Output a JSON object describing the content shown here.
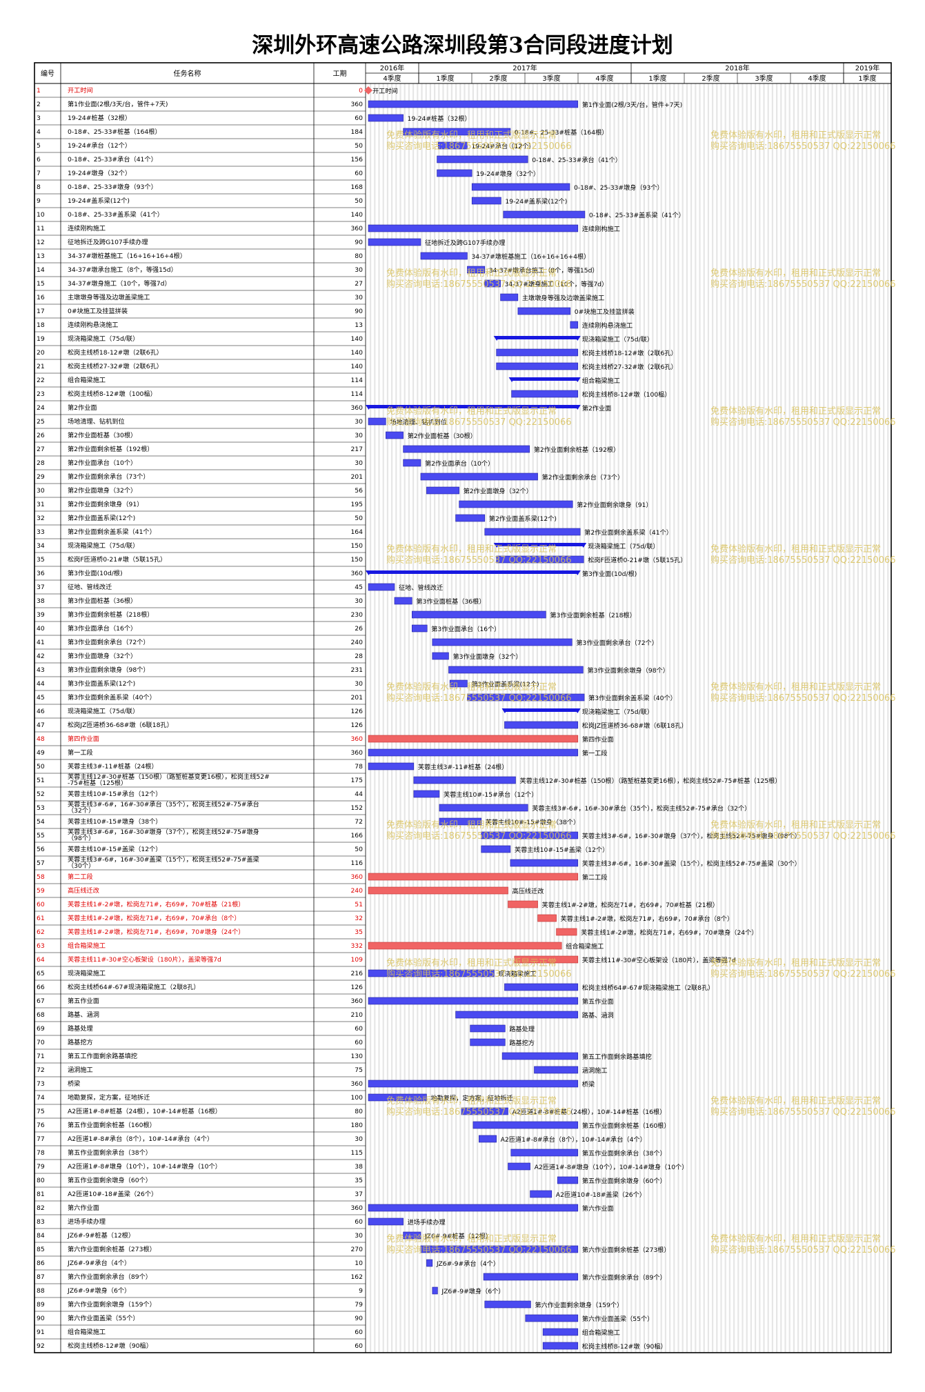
{
  "title": "深圳外环高速公路深圳段第3合同段进度计划",
  "header": {
    "col_id": "编号",
    "col_name": "任务名称",
    "col_dur": "工期",
    "years": [
      {
        "label": "2016年",
        "start": 0,
        "end": 1
      },
      {
        "label": "2017年",
        "start": 1,
        "end": 5
      },
      {
        "label": "2018年",
        "start": 5,
        "end": 9
      },
      {
        "label": "2019年",
        "start": 9,
        "end": 10
      }
    ],
    "quarters": [
      "4季度",
      "1季度",
      "2季度",
      "3季度",
      "4季度",
      "1季度",
      "2季度",
      "3季度",
      "4季度",
      "1季度"
    ]
  },
  "watermark": [
    "免费体验版有水印，租用和正式版显示正常",
    "购买咨询电话:18675550537 QQ:22150066"
  ],
  "colors": {
    "normal": "#4a4af0",
    "critical": "#f06464",
    "summary": "#1818e0",
    "text_red": "#e00000"
  },
  "chart_data": {
    "type": "gantt",
    "unit": "days",
    "tasks": [
      {
        "id": "1",
        "name": "开工时间",
        "dur": "0",
        "s": 0,
        "e": 0,
        "red": true,
        "milestone": true,
        "label": "开工时间"
      },
      {
        "id": "2",
        "name": "第1作业面(2根/3天/台，管件+7天)",
        "dur": "360",
        "s": 0,
        "e": 360,
        "label": "第1作业面(2根/3天/台，管件+7天)"
      },
      {
        "id": "3",
        "name": "19-24#桩基（32根）",
        "dur": "60",
        "s": 0,
        "e": 60,
        "label": "19-24#桩基（32根）"
      },
      {
        "id": "4",
        "name": "0-18#、25-33#桩基（164根）",
        "dur": "184",
        "s": 60,
        "e": 244,
        "label": "0-18#、25-33#桩基（164根）"
      },
      {
        "id": "5",
        "name": "19-24#承台（12个）",
        "dur": "50",
        "s": 120,
        "e": 170,
        "label": "19-24#承台（12个）"
      },
      {
        "id": "6",
        "name": "0-18#、25-33#承台（41个）",
        "dur": "156",
        "s": 118,
        "e": 274,
        "label": "0-18#、25-33#承台（41个）"
      },
      {
        "id": "7",
        "name": "19-24#墩身（32个）",
        "dur": "60",
        "s": 118,
        "e": 178,
        "label": "19-24#墩身（32个）"
      },
      {
        "id": "8",
        "name": "0-18#、25-33#墩身（93个）",
        "dur": "168",
        "s": 178,
        "e": 346,
        "label": "0-18#、25-33#墩身（93个）"
      },
      {
        "id": "9",
        "name": "19-24#盖系梁(12个)",
        "dur": "50",
        "s": 178,
        "e": 228,
        "label": "19-24#盖系梁(12个)"
      },
      {
        "id": "10",
        "name": "0-18#、25-33#盖系梁（41个）",
        "dur": "140",
        "s": 232,
        "e": 372,
        "label": "0-18#、25-33#盖系梁（41个）"
      },
      {
        "id": "11",
        "name": "连续刚构施工",
        "dur": "360",
        "s": 0,
        "e": 360,
        "label": "连续刚构施工"
      },
      {
        "id": "12",
        "name": "征地拆迁及跨G107手续办理",
        "dur": "90",
        "s": 0,
        "e": 90,
        "label": "征地拆迁及跨G107手续办理"
      },
      {
        "id": "13",
        "name": "34-37#墩桩基施工（16+16+16+4根）",
        "dur": "80",
        "s": 90,
        "e": 170,
        "label": "34-37#墩桩基施工（16+16+16+4根）"
      },
      {
        "id": "14",
        "name": "34-37#墩承台施工（8个，等强15d）",
        "dur": "30",
        "s": 170,
        "e": 200,
        "label": "34-37#墩承台施工（8个，等强15d）"
      },
      {
        "id": "15",
        "name": "34-37#墩身施工（10个，等强7d）",
        "dur": "27",
        "s": 200,
        "e": 227,
        "label": "34-37#墩身施工（10个，等强7d）"
      },
      {
        "id": "16",
        "name": "主墩墩身等强及边墩盖梁施工",
        "dur": "30",
        "s": 227,
        "e": 257,
        "label": "主墩墩身等强及边墩盖梁施工"
      },
      {
        "id": "17",
        "name": "0#块施工及挂篮拼装",
        "dur": "90",
        "s": 257,
        "e": 347,
        "label": "0#块施工及挂篮拼装"
      },
      {
        "id": "18",
        "name": "连续刚构悬浇施工",
        "dur": "13",
        "s": 347,
        "e": 360,
        "label": "连续刚构悬浇施工"
      },
      {
        "id": "19",
        "name": "现浇箱梁施工（75d/联）",
        "dur": "140",
        "s": 220,
        "e": 360,
        "summary": true,
        "label": "现浇箱梁施工（75d/联）"
      },
      {
        "id": "20",
        "name": "松岗主线桥18-12#墩（2联6孔）",
        "dur": "140",
        "s": 220,
        "e": 360,
        "label": "松岗主线桥18-12#墩（2联6孔）"
      },
      {
        "id": "21",
        "name": "松岗主线桥27-32#墩（2联6孔）",
        "dur": "140",
        "s": 220,
        "e": 360,
        "label": "松岗主线桥27-32#墩（2联6孔）"
      },
      {
        "id": "22",
        "name": "组合箱梁施工",
        "dur": "114",
        "s": 246,
        "e": 360,
        "summary": true,
        "label": "组合箱梁施工"
      },
      {
        "id": "23",
        "name": "松岗主线桥8-12#墩（100榀）",
        "dur": "114",
        "s": 246,
        "e": 360,
        "label": "松岗主线桥8-12#墩（100榀）"
      },
      {
        "id": "24",
        "name": "第2作业面",
        "dur": "360",
        "s": 0,
        "e": 360,
        "summary": true,
        "label": "第2作业面"
      },
      {
        "id": "25",
        "name": "场地清理、钻机到位",
        "dur": "30",
        "s": 0,
        "e": 30,
        "label": "场地清理、钻机到位"
      },
      {
        "id": "26",
        "name": "第2作业面桩基（30根）",
        "dur": "30",
        "s": 30,
        "e": 60,
        "label": "第2作业面桩基（30根）"
      },
      {
        "id": "27",
        "name": "第2作业面剩余桩基（192根）",
        "dur": "217",
        "s": 60,
        "e": 277,
        "label": "第2作业面剩余桩基（192根）"
      },
      {
        "id": "28",
        "name": "第2作业面承台（10个）",
        "dur": "30",
        "s": 60,
        "e": 90,
        "label": "第2作业面承台（10个）"
      },
      {
        "id": "29",
        "name": "第2作业面剩余承台（73个）",
        "dur": "201",
        "s": 90,
        "e": 291,
        "label": "第2作业面剩余承台（73个）"
      },
      {
        "id": "30",
        "name": "第2作业面墩身（32个）",
        "dur": "56",
        "s": 100,
        "e": 156,
        "label": "第2作业面墩身（32个）"
      },
      {
        "id": "31",
        "name": "第2作业面剩余墩身（91）",
        "dur": "195",
        "s": 156,
        "e": 351,
        "label": "第2作业面剩余墩身（91）"
      },
      {
        "id": "32",
        "name": "第2作业面盖系梁(12个)",
        "dur": "50",
        "s": 150,
        "e": 200,
        "label": "第2作业面盖系梁(12个)"
      },
      {
        "id": "33",
        "name": "第2作业面剩余盖系梁（41个）",
        "dur": "164",
        "s": 200,
        "e": 364,
        "label": "第2作业面剩余盖系梁（41个）"
      },
      {
        "id": "34",
        "name": "现浇箱梁施工（75d/联）",
        "dur": "150",
        "s": 220,
        "e": 370,
        "summary": true,
        "label": "现浇箱梁施工（75d/联）"
      },
      {
        "id": "35",
        "name": "松岗F匝道桥0-21#墩（5联15孔）",
        "dur": "150",
        "s": 220,
        "e": 370,
        "label": "松岗F匝道桥0-21#墩（5联15孔）"
      },
      {
        "id": "36",
        "name": "第3作业面(10d/根)",
        "dur": "360",
        "s": 0,
        "e": 360,
        "summary": true,
        "label": "第3作业面(10d/根)"
      },
      {
        "id": "37",
        "name": "征地、管线改迁",
        "dur": "45",
        "s": 0,
        "e": 45,
        "label": "征地、管线改迁"
      },
      {
        "id": "38",
        "name": "第3作业面桩基（36根）",
        "dur": "30",
        "s": 45,
        "e": 75,
        "label": "第3作业面桩基（36根）"
      },
      {
        "id": "39",
        "name": "第3作业面剩余桩基（218根）",
        "dur": "230",
        "s": 75,
        "e": 305,
        "label": "第3作业面剩余桩基（218根）"
      },
      {
        "id": "40",
        "name": "第3作业面承台（16个）",
        "dur": "26",
        "s": 75,
        "e": 101,
        "label": "第3作业面承台（16个）"
      },
      {
        "id": "41",
        "name": "第3作业面剩余承台（72个）",
        "dur": "240",
        "s": 110,
        "e": 350,
        "label": "第3作业面剩余承台（72个）"
      },
      {
        "id": "42",
        "name": "第3作业面墩身（32个）",
        "dur": "28",
        "s": 110,
        "e": 138,
        "label": "第3作业面墩身（32个）"
      },
      {
        "id": "43",
        "name": "第3作业面剩余墩身（98个）",
        "dur": "231",
        "s": 138,
        "e": 369,
        "label": "第3作业面剩余墩身（98个）"
      },
      {
        "id": "44",
        "name": "第3作业面盖系梁(12个)",
        "dur": "30",
        "s": 140,
        "e": 170,
        "label": "第3作业面盖系梁(12个)"
      },
      {
        "id": "45",
        "name": "第3作业面剩余盖系梁（40个）",
        "dur": "201",
        "s": 170,
        "e": 371,
        "label": "第3作业面剩余盖系梁（40个）"
      },
      {
        "id": "46",
        "name": "现浇箱梁施工（75d/联）",
        "dur": "126",
        "s": 234,
        "e": 360,
        "summary": true,
        "label": "现浇箱梁施工（75d/联）"
      },
      {
        "id": "47",
        "name": "松岗JZ匝道桥36-68#墩（6联18孔）",
        "dur": "126",
        "s": 234,
        "e": 360,
        "label": "松岗JZ匝道桥36-68#墩（6联18孔）"
      },
      {
        "id": "48",
        "name": "第四作业面",
        "dur": "360",
        "s": 0,
        "e": 360,
        "red": true,
        "label": "第四作业面"
      },
      {
        "id": "49",
        "name": "第一工段",
        "dur": "360",
        "s": 0,
        "e": 360,
        "label": "第一工段"
      },
      {
        "id": "50",
        "name": "芙蓉主线3#-11#桩基（24根）",
        "dur": "78",
        "s": 0,
        "e": 78,
        "label": "芙蓉主线3#-11#桩基（24根）"
      },
      {
        "id": "51",
        "name": "芙蓉主线12#-30#桩基（150根）（路堑桩基变更16根），松岗主线52#-75#桩基（125根）",
        "dur": "175",
        "s": 78,
        "e": 253,
        "label": "芙蓉主线12#-30#桩基（150根）（路堑桩基变更16根），松岗主线52#-75#桩基（125根）"
      },
      {
        "id": "52",
        "name": "芙蓉主线10#-15#承台（12个）",
        "dur": "44",
        "s": 78,
        "e": 122,
        "label": "芙蓉主线10#-15#承台（12个）"
      },
      {
        "id": "53",
        "name": "芙蓉主线3#-6#，16#-30#承台（35个），松岗主线52#-75#承台（32个）",
        "dur": "152",
        "s": 122,
        "e": 274,
        "label": "芙蓉主线3#-6#，16#-30#承台（35个），松岗主线52#-75#承台（32个）"
      },
      {
        "id": "54",
        "name": "芙蓉主线10#-15#墩身（38个）",
        "dur": "72",
        "s": 122,
        "e": 194,
        "label": "芙蓉主线10#-15#墩身（38个）"
      },
      {
        "id": "55",
        "name": "芙蓉主线3#-6#，16#-30#墩身（37个），松岗主线52#-75#墩身（98个）",
        "dur": "166",
        "s": 194,
        "e": 360,
        "label": "芙蓉主线3#-6#，16#-30#墩身（37个），松岗主线52#-75#墩身（98个）"
      },
      {
        "id": "56",
        "name": "芙蓉主线10#-15#盖梁（12个）",
        "dur": "50",
        "s": 194,
        "e": 244,
        "label": "芙蓉主线10#-15#盖梁（12个）"
      },
      {
        "id": "57",
        "name": "芙蓉主线3#-6#，16#-30#盖梁（15个），松岗主线52#-75#盖梁（30个）",
        "dur": "116",
        "s": 244,
        "e": 360,
        "label": "芙蓉主线3#-6#，16#-30#盖梁（15个），松岗主线52#-75#盖梁（30个）"
      },
      {
        "id": "58",
        "name": "第二工段",
        "dur": "360",
        "s": 0,
        "e": 360,
        "red": true,
        "label": "第二工段"
      },
      {
        "id": "59",
        "name": "高压线迁改",
        "dur": "240",
        "s": 0,
        "e": 240,
        "red": true,
        "label": "高压线迁改"
      },
      {
        "id": "60",
        "name": "芙蓉主线1#-2#墩，松岗左71#，右69#，70#桩基（21根）",
        "dur": "51",
        "s": 240,
        "e": 291,
        "red": true,
        "label": "芙蓉主线1#-2#墩，松岗左71#，右69#，70#桩基（21根）"
      },
      {
        "id": "61",
        "name": "芙蓉主线1#-2#墩，松岗左71#，右69#，70#承台（8个）",
        "dur": "32",
        "s": 291,
        "e": 323,
        "red": true,
        "label": "芙蓉主线1#-2#墩，松岗左71#，右69#，70#承台（8个）"
      },
      {
        "id": "62",
        "name": "芙蓉主线1#-2#墩，松岗左71#，右69#，70#墩身（24个）",
        "dur": "35",
        "s": 323,
        "e": 358,
        "red": true,
        "label": "芙蓉主线1#-2#墩，松岗左71#，右69#，70#墩身（24个）"
      },
      {
        "id": "63",
        "name": "组合箱梁施工",
        "dur": "332",
        "s": 0,
        "e": 332,
        "red": true,
        "label": "组合箱梁施工"
      },
      {
        "id": "64",
        "name": "芙蓉主线11#-30#空心板架设（180片），盖梁等强7d",
        "dur": "109",
        "s": 251,
        "e": 360,
        "red": true,
        "label": "芙蓉主线11#-30#空心板架设（180片），盖梁等强7d"
      },
      {
        "id": "65",
        "name": "现浇箱梁施工",
        "dur": "216",
        "s": 0,
        "e": 216,
        "label": "现浇箱梁施工"
      },
      {
        "id": "66",
        "name": "松岗主线桥64#-67#现浇箱梁施工（2联8孔）",
        "dur": "126",
        "s": 234,
        "e": 360,
        "label": "松岗主线桥64#-67#现浇箱梁施工（2联8孔）"
      },
      {
        "id": "67",
        "name": "第五作业面",
        "dur": "360",
        "s": 0,
        "e": 360,
        "label": "第五作业面"
      },
      {
        "id": "68",
        "name": "路基、涵洞",
        "dur": "210",
        "s": 150,
        "e": 360,
        "label": "路基、涵洞"
      },
      {
        "id": "69",
        "name": "路基处理",
        "dur": "60",
        "s": 175,
        "e": 235,
        "label": "路基处理"
      },
      {
        "id": "70",
        "name": "路基挖方",
        "dur": "60",
        "s": 175,
        "e": 235,
        "label": "路基挖方"
      },
      {
        "id": "71",
        "name": "第五工作面剩余路基填挖",
        "dur": "130",
        "s": 230,
        "e": 360,
        "label": "第五工作面剩余路基填挖"
      },
      {
        "id": "72",
        "name": "涵洞施工",
        "dur": "75",
        "s": 285,
        "e": 360,
        "label": "涵洞施工"
      },
      {
        "id": "73",
        "name": "桥梁",
        "dur": "360",
        "s": 0,
        "e": 360,
        "label": "桥梁"
      },
      {
        "id": "74",
        "name": "地勘复探，定方案，征地拆迁",
        "dur": "100",
        "s": 0,
        "e": 100,
        "label": "地勘复探，定方案，征地拆迁"
      },
      {
        "id": "75",
        "name": "A2匝道1#-8#桩基（24根），10#-14#桩基（16根）",
        "dur": "80",
        "s": 160,
        "e": 240,
        "label": "A2匝道1#-8#桩基（24根），10#-14#桩基（16根）"
      },
      {
        "id": "76",
        "name": "第五作业面剩余桩基（160根）",
        "dur": "180",
        "s": 180,
        "e": 360,
        "label": "第五作业面剩余桩基（160根）"
      },
      {
        "id": "77",
        "name": "A2匝道1#-8#承台（8个），10#-14#承台（4个）",
        "dur": "30",
        "s": 190,
        "e": 220,
        "label": "A2匝道1#-8#承台（8个），10#-14#承台（4个）"
      },
      {
        "id": "78",
        "name": "第五作业面剩余承台（38个）",
        "dur": "115",
        "s": 245,
        "e": 360,
        "label": "第五作业面剩余承台（38个）"
      },
      {
        "id": "79",
        "name": "A2匝道1#-8#墩身（10个），10#-14#墩身（10个）",
        "dur": "38",
        "s": 240,
        "e": 278,
        "label": "A2匝道1#-8#墩身（10个），10#-14#墩身（10个）"
      },
      {
        "id": "80",
        "name": "第五作业面剩余墩身（60个）",
        "dur": "35",
        "s": 325,
        "e": 360,
        "label": "第五作业面剩余墩身（60个）"
      },
      {
        "id": "81",
        "name": "A2匝道10#-18#盖梁（26个）",
        "dur": "37",
        "s": 278,
        "e": 315,
        "label": "A2匝道10#-18#盖梁（26个）"
      },
      {
        "id": "82",
        "name": "第六作业面",
        "dur": "360",
        "s": 0,
        "e": 360,
        "label": "第六作业面"
      },
      {
        "id": "83",
        "name": "进场手续办理",
        "dur": "60",
        "s": 0,
        "e": 60,
        "label": "进场手续办理"
      },
      {
        "id": "84",
        "name": "JZ6#-9#桩基（12根）",
        "dur": "30",
        "s": 60,
        "e": 90,
        "label": "JZ6#-9#桩基（12根）"
      },
      {
        "id": "85",
        "name": "第六作业面剩余桩基（273根）",
        "dur": "270",
        "s": 90,
        "e": 360,
        "label": "第六作业面剩余桩基（273根）"
      },
      {
        "id": "86",
        "name": "JZ6#-9#承台（4个）",
        "dur": "10",
        "s": 100,
        "e": 110,
        "label": "JZ6#-9#承台（4个）"
      },
      {
        "id": "87",
        "name": "第六作业面剩余承台（89个）",
        "dur": "162",
        "s": 198,
        "e": 360,
        "label": "第六作业面剩余承台（89个）"
      },
      {
        "id": "88",
        "name": "JZ6#-9#墩身（6个）",
        "dur": "9",
        "s": 110,
        "e": 119,
        "label": "JZ6#-9#墩身（6个）"
      },
      {
        "id": "89",
        "name": "第六作业面剩余墩身（159个）",
        "dur": "79",
        "s": 200,
        "e": 279,
        "label": "第六作业面剩余墩身（159个）"
      },
      {
        "id": "90",
        "name": "第六作业面盖梁（55个）",
        "dur": "90",
        "s": 270,
        "e": 360,
        "label": "第六作业面盖梁（55个）"
      },
      {
        "id": "91",
        "name": "组合箱梁施工",
        "dur": "60",
        "s": 300,
        "e": 360,
        "label": "组合箱梁施工"
      },
      {
        "id": "92",
        "name": "松岗主线桥8-12#墩（90榀）",
        "dur": "60",
        "s": 300,
        "e": 360,
        "label": "松岗主线桥8-12#墩（90榀）"
      }
    ]
  }
}
